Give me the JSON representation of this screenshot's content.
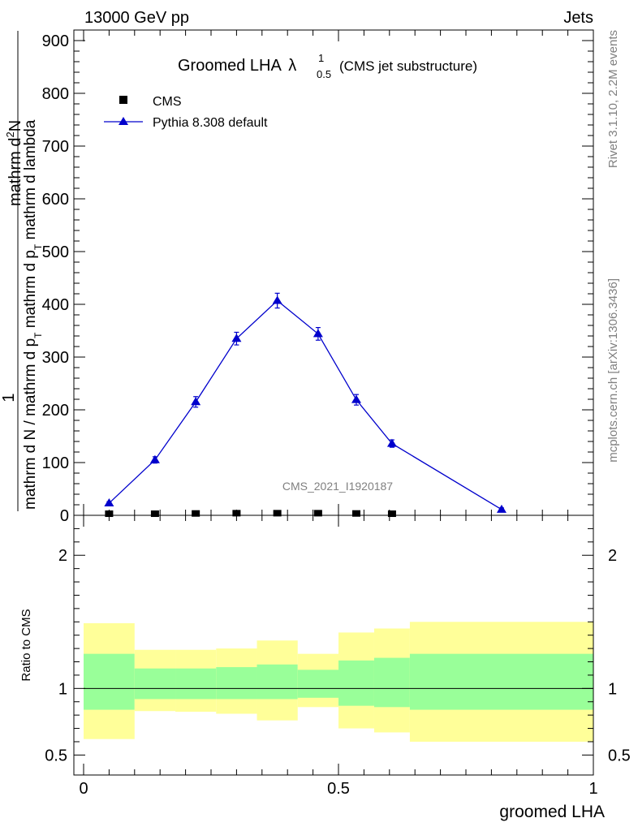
{
  "header": {
    "energy": "13000 GeV pp",
    "category": "Jets"
  },
  "side_labels": {
    "rivet": "Rivet 3.1.10,  2.2M events",
    "mcplots": "mcplots.cern.ch [arXiv:1306.3436]"
  },
  "chart_data": [
    {
      "type": "line",
      "title_main": "Groomed LHA",
      "title_symbol": "λ",
      "title_sup": "1",
      "title_sub": "0.5",
      "title_note": "(CMS jet substructure)",
      "analysis_label": "CMS_2021_I1920187",
      "ylabel_parts": {
        "numerator_top": "1",
        "numerator_right": "mathrm d",
        "numerator_sup": "2",
        "numerator_end": "N",
        "denominator": "mathrm d N / mathrm d p",
        "denominator_sub": "T",
        "denominator_mid": " mathrm d p",
        "denominator_sub2": "T",
        "denominator_end": " mathrm d lambda"
      },
      "ylim": [
        0,
        920
      ],
      "xlim": [
        -0.01,
        1.0
      ],
      "y_ticks": [
        "0",
        "100",
        "200",
        "300",
        "400",
        "500",
        "600",
        "700",
        "800",
        "900"
      ],
      "legend": {
        "data_label": "CMS",
        "mc_label": "Pythia 8.308 default",
        "placement": "top-left"
      },
      "series": [
        {
          "name": "CMS",
          "x": [
            0.05,
            0.14,
            0.22,
            0.3,
            0.38,
            0.46,
            0.535,
            0.605
          ],
          "values": [
            1.5,
            1.5,
            2,
            2.5,
            2.5,
            2.5,
            2,
            1.5
          ]
        },
        {
          "name": "Pythia 8.308 default",
          "x": [
            0.05,
            0.14,
            0.22,
            0.3,
            0.38,
            0.46,
            0.535,
            0.605,
            0.82
          ],
          "values": [
            23,
            105,
            215,
            335,
            407,
            344,
            219,
            136,
            11
          ],
          "errors": [
            3,
            6,
            10,
            12,
            14,
            12,
            10,
            7,
            3
          ]
        }
      ]
    },
    {
      "type": "area",
      "ylabel": "Ratio to CMS",
      "xlabel": "groomed LHA",
      "ylim": [
        0.35,
        2.3
      ],
      "xlim": [
        -0.01,
        1.0
      ],
      "y_ticks": [
        "0.5",
        "1",
        "2"
      ],
      "x_ticks": [
        "0",
        "0.5",
        "1"
      ],
      "reference_line": 1,
      "bins": [
        {
          "lo": 0.0,
          "hi": 0.1,
          "inner": [
            0.84,
            1.26
          ],
          "outer": [
            0.62,
            1.49
          ]
        },
        {
          "lo": 0.1,
          "hi": 0.18,
          "inner": [
            0.92,
            1.15
          ],
          "outer": [
            0.83,
            1.29
          ]
        },
        {
          "lo": 0.18,
          "hi": 0.26,
          "inner": [
            0.92,
            1.15
          ],
          "outer": [
            0.825,
            1.29
          ]
        },
        {
          "lo": 0.26,
          "hi": 0.34,
          "inner": [
            0.92,
            1.16
          ],
          "outer": [
            0.81,
            1.3
          ]
        },
        {
          "lo": 0.34,
          "hi": 0.42,
          "inner": [
            0.92,
            1.18
          ],
          "outer": [
            0.76,
            1.36
          ]
        },
        {
          "lo": 0.42,
          "hi": 0.5,
          "inner": [
            0.93,
            1.14
          ],
          "outer": [
            0.86,
            1.26
          ]
        },
        {
          "lo": 0.5,
          "hi": 0.57,
          "inner": [
            0.87,
            1.21
          ],
          "outer": [
            0.7,
            1.42
          ]
        },
        {
          "lo": 0.57,
          "hi": 0.64,
          "inner": [
            0.86,
            1.23
          ],
          "outer": [
            0.67,
            1.45
          ]
        },
        {
          "lo": 0.64,
          "hi": 1.0,
          "inner": [
            0.84,
            1.26
          ],
          "outer": [
            0.6,
            1.5
          ]
        }
      ],
      "colors": {
        "inner": "#99ff99",
        "outer": "#ffff99",
        "mc_line": "#0000cc"
      }
    }
  ]
}
